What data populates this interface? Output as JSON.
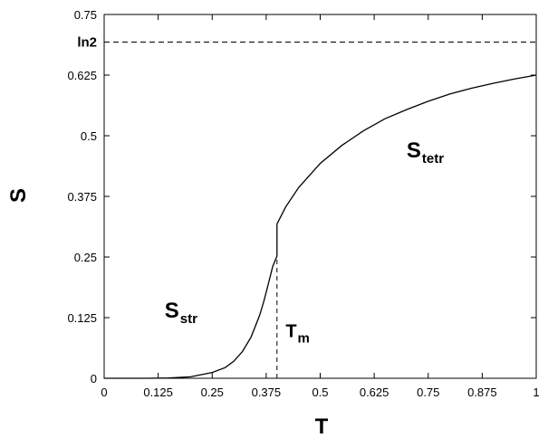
{
  "chart_data": {
    "type": "line",
    "title": "",
    "xlabel": "T",
    "ylabel": "S",
    "xlim": [
      0,
      1
    ],
    "ylim": [
      0,
      0.75
    ],
    "grid": false,
    "legend": "none",
    "x_ticks": [
      "0",
      "0.125",
      "0.25",
      "0.375",
      "0.5",
      "0.625",
      "0.75",
      "0.875",
      "1"
    ],
    "y_ticks": [
      "0",
      "0.125",
      "0.25",
      "0.375",
      "0.5",
      "0.625",
      "0.75"
    ],
    "y_tick_values": [
      0,
      0.125,
      0.25,
      0.375,
      0.5,
      0.625,
      0.75
    ],
    "series": [
      {
        "style": "solid",
        "x": [
          0.0,
          0.1,
          0.15,
          0.2,
          0.25,
          0.28,
          0.3,
          0.32,
          0.34,
          0.36,
          0.37,
          0.38,
          0.39,
          0.4
        ],
        "y": [
          0.0,
          0.0,
          0.0005,
          0.003,
          0.012,
          0.022,
          0.035,
          0.055,
          0.085,
          0.13,
          0.16,
          0.195,
          0.23,
          0.252
        ]
      },
      {
        "style": "solid",
        "x": [
          0.4,
          0.4
        ],
        "y": [
          0.252,
          0.318
        ]
      },
      {
        "style": "solid",
        "x": [
          0.4,
          0.42,
          0.45,
          0.5,
          0.55,
          0.6,
          0.65,
          0.7,
          0.75,
          0.8,
          0.85,
          0.9,
          0.95,
          1.0
        ],
        "y": [
          0.318,
          0.353,
          0.393,
          0.443,
          0.48,
          0.51,
          0.535,
          0.554,
          0.571,
          0.586,
          0.598,
          0.608,
          0.617,
          0.625
        ]
      }
    ],
    "reference_lines": [
      {
        "orientation": "horizontal",
        "style": "dashed",
        "value": 0.693,
        "label": "ln2"
      },
      {
        "orientation": "vertical",
        "style": "dashed",
        "value": 0.4,
        "from": 0,
        "to": 0.252
      }
    ],
    "annotations": [
      {
        "main": "S",
        "sub": "tetr",
        "x": 0.7,
        "y": 0.455
      },
      {
        "main": "S",
        "sub": "str",
        "x": 0.14,
        "y": 0.125
      },
      {
        "main": "T",
        "sub": "m",
        "x": 0.42,
        "y": 0.085
      }
    ]
  }
}
